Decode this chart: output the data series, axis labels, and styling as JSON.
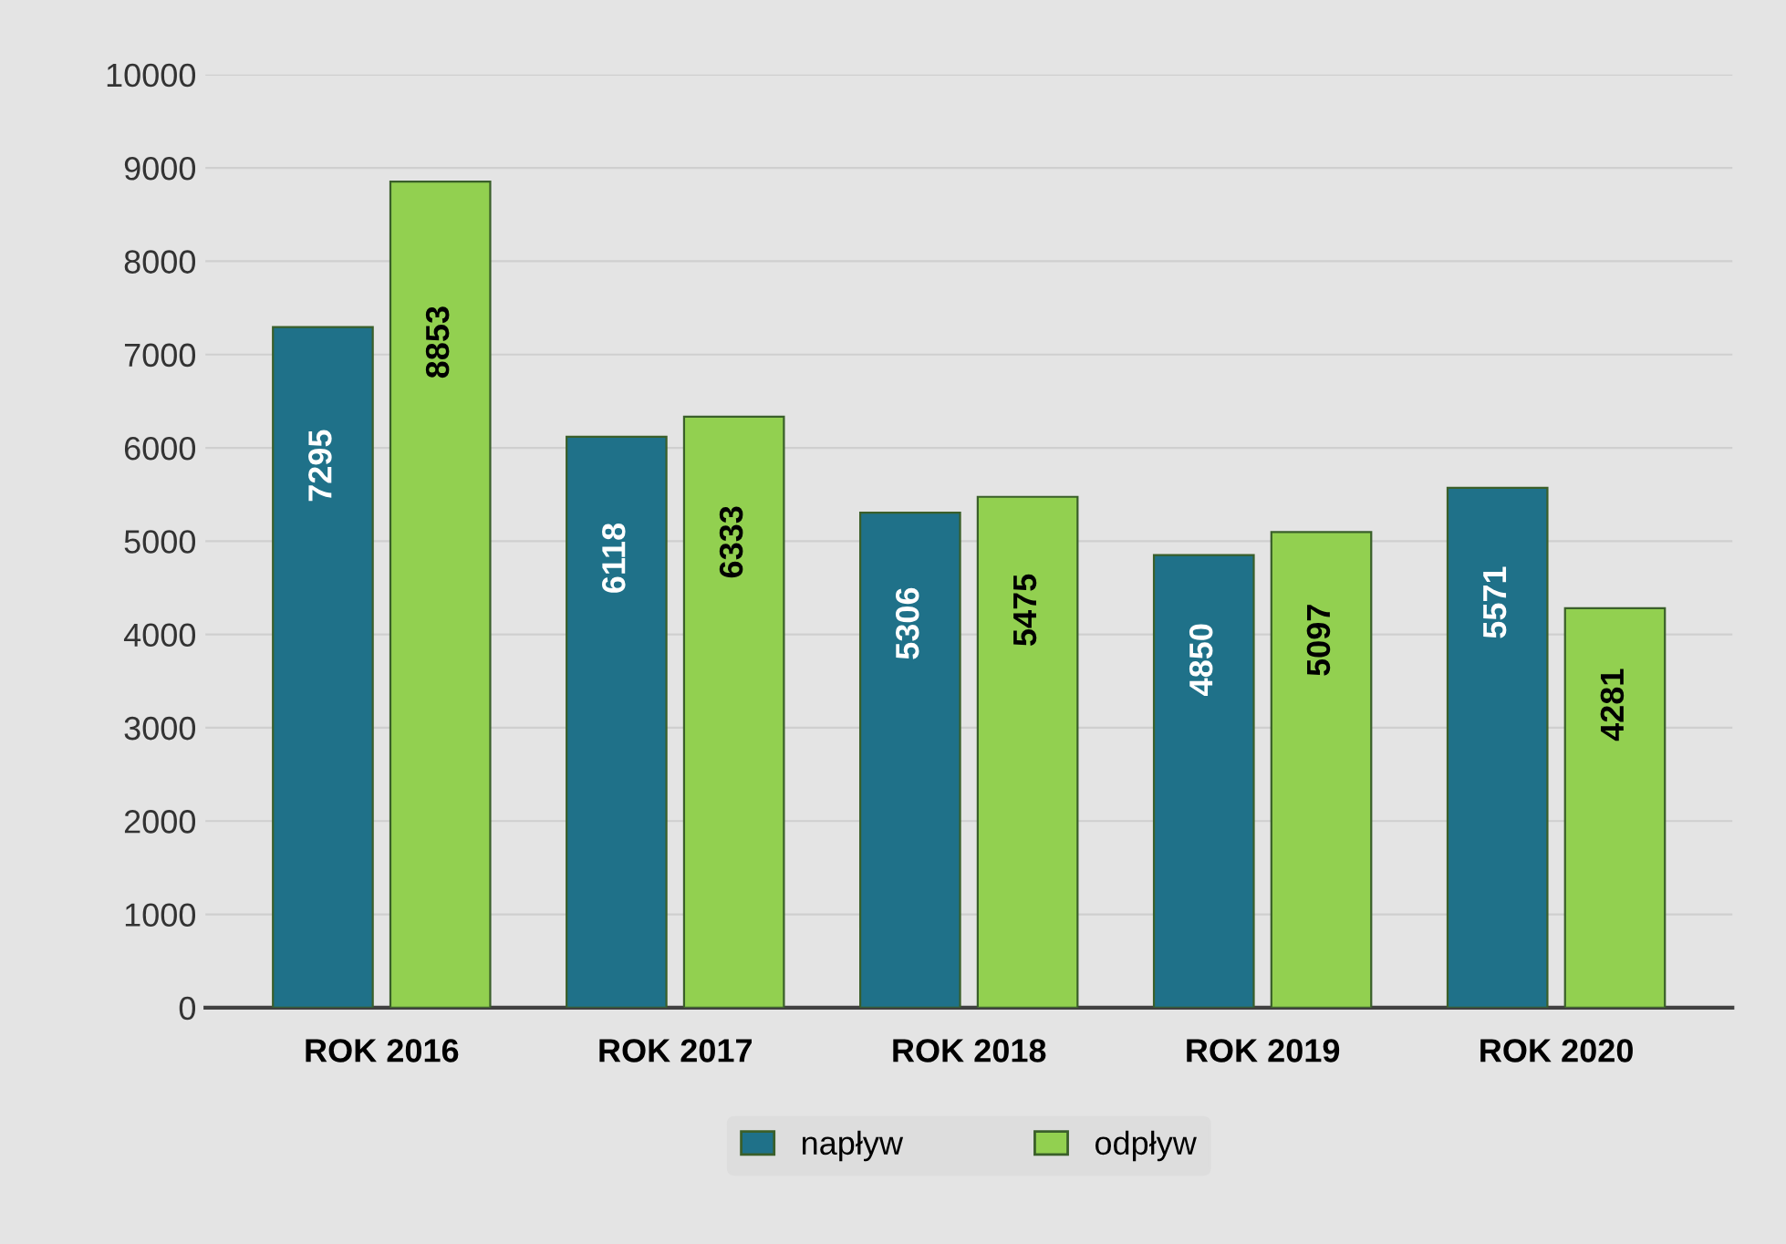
{
  "chart_data": {
    "type": "bar",
    "categories": [
      "ROK 2016",
      "ROK 2017",
      "ROK 2018",
      "ROK 2019",
      "ROK 2020"
    ],
    "series": [
      {
        "name": "napływ",
        "color": "#1f7189",
        "values": [
          7295,
          6118,
          5306,
          4850,
          5571
        ]
      },
      {
        "name": "odpływ",
        "color": "#92d050",
        "values": [
          8853,
          6333,
          5475,
          5097,
          4281
        ]
      }
    ],
    "ylim": [
      0,
      10000
    ],
    "yticks": [
      0,
      1000,
      2000,
      3000,
      4000,
      5000,
      6000,
      7000,
      8000,
      9000,
      10000
    ],
    "grid": "y",
    "legend": "bottom",
    "data_labels": true
  }
}
